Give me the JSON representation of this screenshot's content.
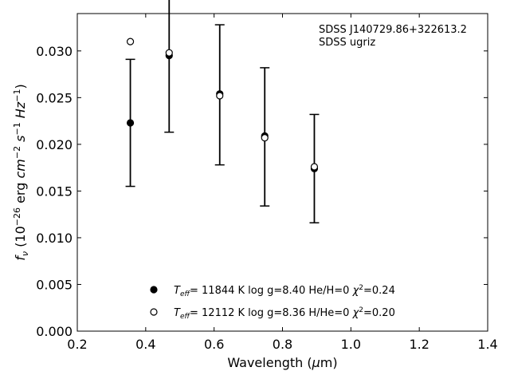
{
  "chart_data": {
    "type": "scatter",
    "title": "",
    "xlabel": "Wavelength (μm)",
    "ylabel": "f_ν (10^−26 erg cm^−2 s^−1 Hz^−1)",
    "xlim": [
      0.2,
      1.4
    ],
    "ylim": [
      0.0,
      0.034
    ],
    "x_ticks": [
      0.2,
      0.4,
      0.6,
      0.8,
      1.0,
      1.2,
      1.4
    ],
    "x_tick_labels": [
      "0.2",
      "0.4",
      "0.6",
      "0.8",
      "1.0",
      "1.2",
      "1.4"
    ],
    "y_ticks": [
      0.0,
      0.005,
      0.01,
      0.015,
      0.02,
      0.025,
      0.03
    ],
    "y_tick_labels": [
      "0.000",
      "0.005",
      "0.010",
      "0.015",
      "0.020",
      "0.025",
      "0.030"
    ],
    "grid": false,
    "annotations": [
      "SDSS J140729.86+322613.2",
      "SDSS ugriz"
    ],
    "observed": {
      "x": [
        0.3551,
        0.4686,
        0.6165,
        0.7481,
        0.8931
      ],
      "y": [
        0.0223,
        0.0295,
        0.0253,
        0.0208,
        0.0174
      ],
      "yerr": [
        0.0068,
        0.0082,
        0.0075,
        0.0074,
        0.0058
      ]
    },
    "series": [
      {
        "name": "Teff= 11844 K  log g=8.40  He/H=0  χ²=0.24",
        "marker": "filled-circle",
        "x": [
          0.3551,
          0.4686,
          0.6165,
          0.7481,
          0.8931
        ],
        "y": [
          0.0223,
          0.0295,
          0.0254,
          0.0209,
          0.0174
        ]
      },
      {
        "name": "Teff= 12112 K  log g=8.36  H/He=0  χ²=0.20",
        "marker": "open-circle",
        "x": [
          0.3551,
          0.4686,
          0.6165,
          0.7481,
          0.8931
        ],
        "y": [
          0.031,
          0.0298,
          0.0252,
          0.0207,
          0.0176
        ]
      }
    ],
    "legend": {
      "placement": "bottom-center",
      "entries": [
        {
          "teff": "11844",
          "logg": "8.40",
          "comp": "He/H=0",
          "chi2": "0.24",
          "marker": "filled-circle"
        },
        {
          "teff": "12112",
          "logg": "8.36",
          "comp": "H/He=0",
          "chi2": "0.20",
          "marker": "open-circle"
        }
      ]
    },
    "colors": {
      "marker": "#000000",
      "axes": "#000000",
      "background": "#ffffff"
    }
  }
}
